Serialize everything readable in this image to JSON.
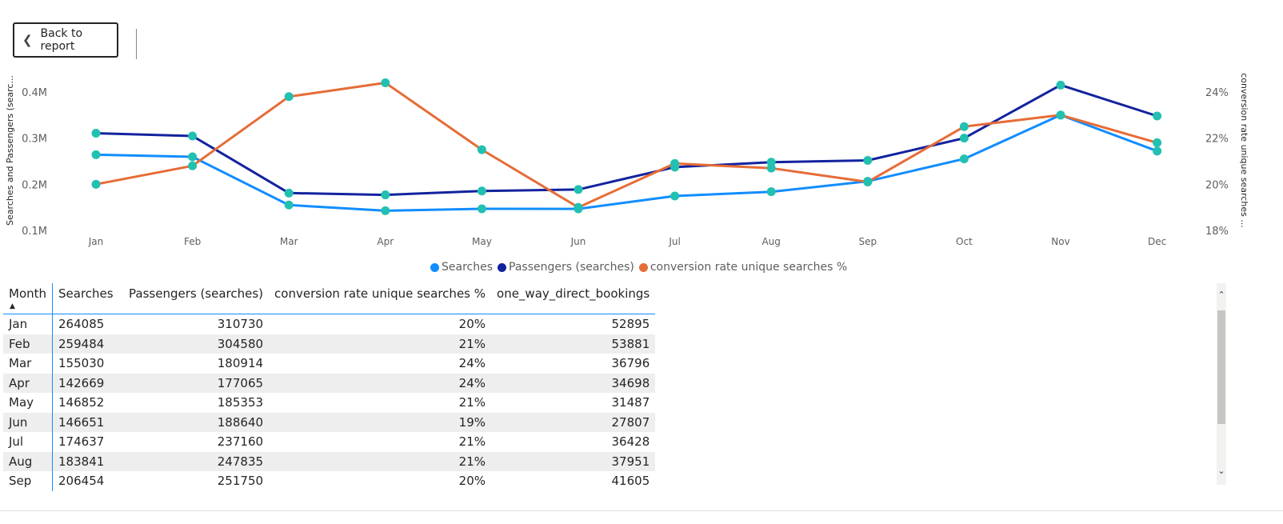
{
  "nav": {
    "back_label": "Back to report"
  },
  "colors": {
    "searches": "#118dff",
    "passengers": "#12239e",
    "conversion": "#e66c37",
    "marker": "#22c0b0"
  },
  "chart_data": {
    "type": "line",
    "categories": [
      "Jan",
      "Feb",
      "Mar",
      "Apr",
      "May",
      "Jun",
      "Jul",
      "Aug",
      "Sep",
      "Oct",
      "Nov",
      "Dec"
    ],
    "series": [
      {
        "name": "Searches",
        "axis": "left",
        "values": [
          264085,
          259484,
          155030,
          142669,
          146852,
          146651,
          174637,
          183841,
          206454,
          255000,
          350000,
          272000
        ]
      },
      {
        "name": "Passengers (searches)",
        "axis": "left",
        "values": [
          310730,
          304580,
          180914,
          177065,
          185353,
          188640,
          237160,
          247835,
          251750,
          300000,
          415000,
          348000
        ]
      },
      {
        "name": "conversion rate unique searches %",
        "axis": "right",
        "values": [
          20.0,
          20.8,
          23.8,
          24.4,
          21.5,
          19.0,
          20.9,
          20.7,
          20.1,
          22.5,
          23.0,
          21.8
        ]
      }
    ],
    "y_left": {
      "title": "Searches and Passengers (searc...",
      "ticks": [
        "0.1M",
        "0.2M",
        "0.3M",
        "0.4M"
      ],
      "range": [
        100000,
        400000
      ]
    },
    "y_right": {
      "title": "conversion rate unique searches ...",
      "ticks": [
        "18%",
        "20%",
        "22%",
        "24%"
      ],
      "range": [
        18,
        24
      ]
    }
  },
  "legend": [
    "Searches",
    "Passengers (searches)",
    "conversion rate unique searches %"
  ],
  "table": {
    "columns": [
      "Month",
      "Searches",
      "Passengers (searches)",
      "conversion rate unique searches %",
      "one_way_direct_bookings"
    ],
    "rows": [
      [
        "Jan",
        "264085",
        "310730",
        "20%",
        "52895"
      ],
      [
        "Feb",
        "259484",
        "304580",
        "21%",
        "53881"
      ],
      [
        "Mar",
        "155030",
        "180914",
        "24%",
        "36796"
      ],
      [
        "Apr",
        "142669",
        "177065",
        "24%",
        "34698"
      ],
      [
        "May",
        "146852",
        "185353",
        "21%",
        "31487"
      ],
      [
        "Jun",
        "146651",
        "188640",
        "19%",
        "27807"
      ],
      [
        "Jul",
        "174637",
        "237160",
        "21%",
        "36428"
      ],
      [
        "Aug",
        "183841",
        "247835",
        "21%",
        "37951"
      ],
      [
        "Sep",
        "206454",
        "251750",
        "20%",
        "41605"
      ]
    ]
  },
  "scroll": {
    "up_icon": "chevron-up-icon",
    "down_icon": "chevron-down-icon"
  }
}
